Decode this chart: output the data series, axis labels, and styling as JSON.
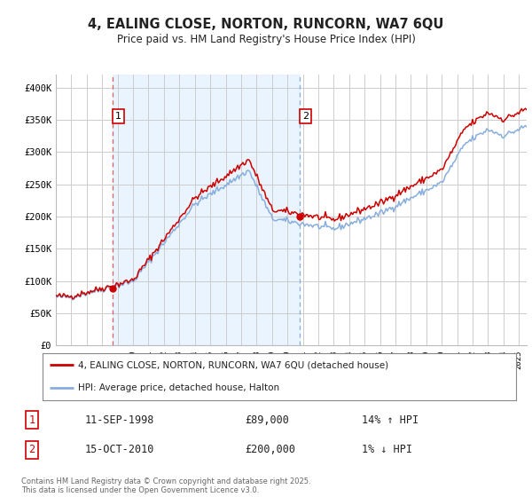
{
  "title": "4, EALING CLOSE, NORTON, RUNCORN, WA7 6QU",
  "subtitle": "Price paid vs. HM Land Registry's House Price Index (HPI)",
  "legend_line1": "4, EALING CLOSE, NORTON, RUNCORN, WA7 6QU (detached house)",
  "legend_line2": "HPI: Average price, detached house, Halton",
  "annotation1_label": "1",
  "annotation1_date": "11-SEP-1998",
  "annotation1_price": "£89,000",
  "annotation1_hpi": "14% ↑ HPI",
  "annotation2_label": "2",
  "annotation2_date": "15-OCT-2010",
  "annotation2_price": "£200,000",
  "annotation2_hpi": "1% ↓ HPI",
  "footer": "Contains HM Land Registry data © Crown copyright and database right 2025.\nThis data is licensed under the Open Government Licence v3.0.",
  "red_color": "#cc0000",
  "blue_color": "#88aedd",
  "vline_red_color": "#e06060",
  "vline_blue_color": "#88aedd",
  "grid_color": "#cccccc",
  "bg_color": "#ffffff",
  "plot_bg_color": "#ffffff",
  "shade_color": "#ddeeff",
  "ylim": [
    0,
    420000
  ],
  "yticks": [
    0,
    50000,
    100000,
    150000,
    200000,
    250000,
    300000,
    350000,
    400000
  ],
  "ytick_labels": [
    "£0",
    "£50K",
    "£100K",
    "£150K",
    "£200K",
    "£250K",
    "£300K",
    "£350K",
    "£400K"
  ],
  "sale1_x": 1998.7,
  "sale1_y": 89000,
  "sale2_x": 2010.8,
  "sale2_y": 200000,
  "xmin": 1995.0,
  "xmax": 2025.5
}
